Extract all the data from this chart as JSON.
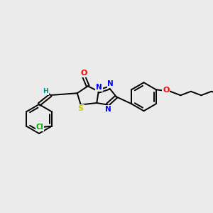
{
  "background_color": "#ebebeb",
  "bond_color": "#000000",
  "atom_colors": {
    "O": "#ff0000",
    "N": "#0000ff",
    "S": "#cccc00",
    "Cl": "#00aa00",
    "H": "#008888",
    "C": "#000000"
  },
  "figsize": [
    3.0,
    3.0
  ],
  "dpi": 100,
  "xlim": [
    0,
    12
  ],
  "ylim": [
    0,
    10
  ]
}
